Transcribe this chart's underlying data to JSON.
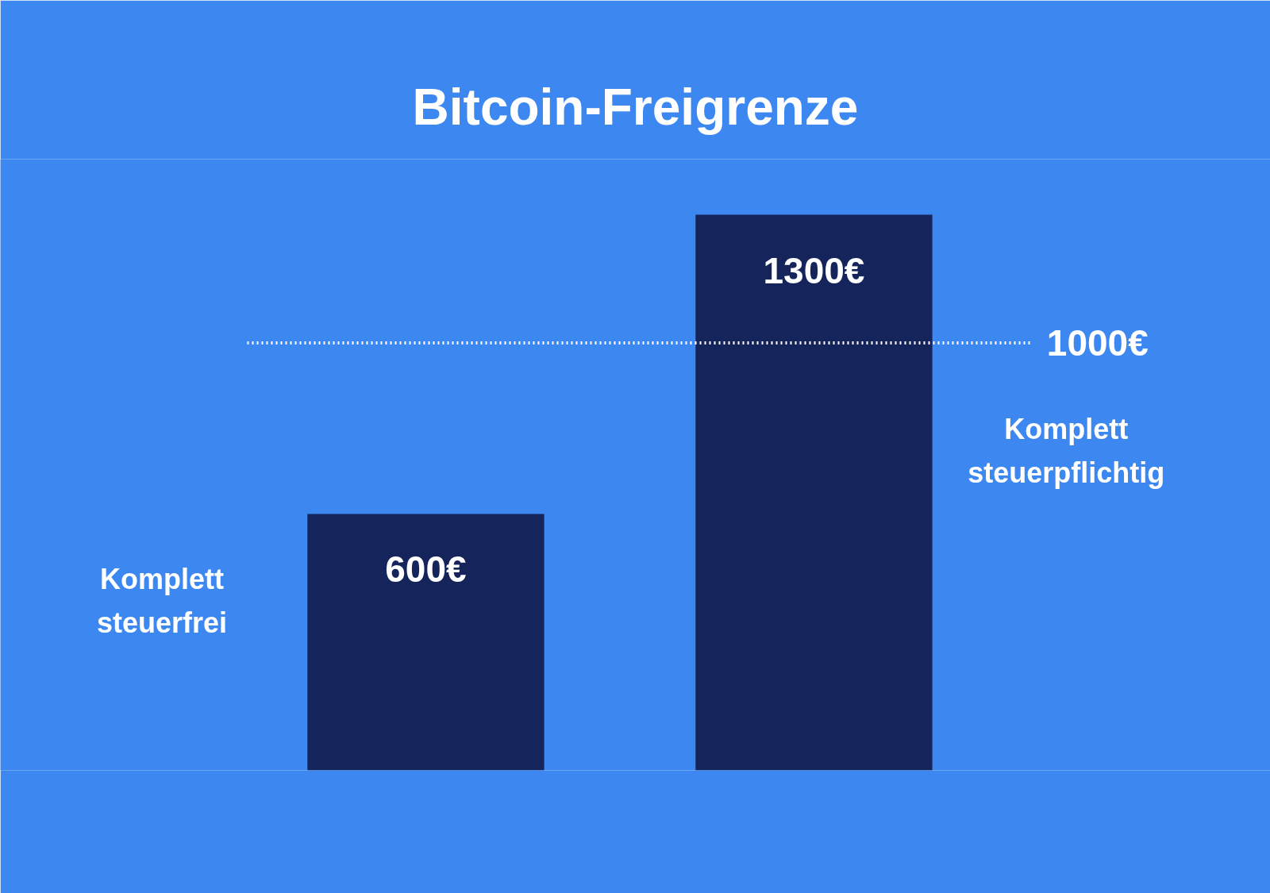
{
  "chart_data": {
    "type": "bar",
    "title": "Bitcoin-Freigrenze",
    "categories": [
      null,
      null
    ],
    "series": [
      {
        "color": "#15245a",
        "values": [
          600,
          1300
        ],
        "value_labels": [
          "600€",
          "1300€"
        ]
      }
    ],
    "ylim": [
      0,
      1430
    ],
    "tick_labels": false,
    "grid": false,
    "ref_lines": [
      {
        "axis": "y",
        "value": 1000,
        "label": "1000€",
        "color": "#ffffff",
        "line_style": "dotted"
      }
    ],
    "annotations": [
      {
        "text": "Komplett steuerfrei"
      },
      {
        "text": "Komplett steuerpflichtig"
      }
    ]
  }
}
